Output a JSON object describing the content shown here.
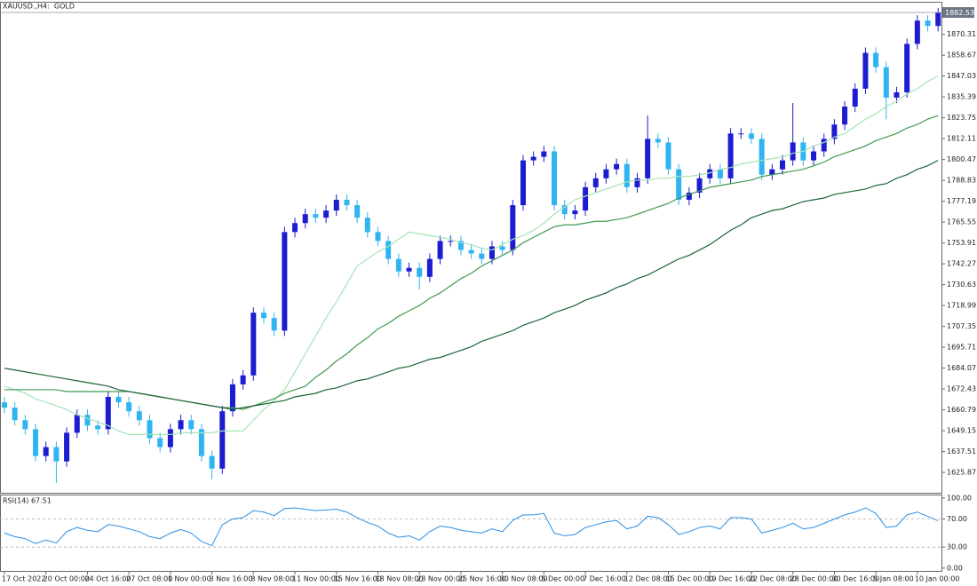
{
  "chart_data": [
    {
      "type": "candlestick",
      "title": "XAUUSD.,H4:  GOLD",
      "categories": [
        "17 Oct 2022",
        null,
        null,
        null,
        "20 Oct 00:00",
        null,
        null,
        null,
        "24 Oct 16:00",
        null,
        null,
        null,
        "27 Oct 08:00",
        null,
        null,
        null,
        "1 Nov 00:00",
        null,
        null,
        null,
        "3 Nov 16:00",
        null,
        null,
        null,
        "8 Nov 08:00",
        null,
        null,
        null,
        "11 Nov 00:00",
        null,
        null,
        null,
        "15 Nov 16:00",
        null,
        null,
        null,
        "18 Nov 08:00",
        null,
        null,
        null,
        "23 Nov 00:00",
        null,
        null,
        null,
        "25 Nov 16:00",
        null,
        null,
        null,
        "30 Nov 08:00",
        null,
        null,
        null,
        "5 Dec 00:00",
        null,
        null,
        null,
        "7 Dec 16:00",
        null,
        null,
        null,
        "12 Dec 08:00",
        null,
        null,
        null,
        "15 Dec 00:00",
        null,
        null,
        null,
        "19 Dec 16:00",
        null,
        null,
        null,
        "22 Dec 08:00",
        null,
        null,
        null,
        "28 Dec 00:00",
        null,
        null,
        null,
        "30 Dec 16:00",
        null,
        null,
        null,
        "5 Jan 08:00",
        null,
        null,
        null,
        "10 Jan 00:00",
        null,
        null
      ],
      "open": [
        1665,
        1662,
        1655,
        1650,
        1635,
        1640,
        1632,
        1648,
        1658,
        1652,
        1650,
        1668,
        1665,
        1660,
        1655,
        1645,
        1640,
        1650,
        1655,
        1650,
        1635,
        1628,
        1660,
        1675,
        1680,
        1715,
        1712,
        1705,
        1760,
        1765,
        1770,
        1768,
        1772,
        1778,
        1775,
        1768,
        1760,
        1755,
        1745,
        1738,
        1740,
        1735,
        1745,
        1755,
        1755,
        1750,
        1748,
        1745,
        1752,
        1750,
        1775,
        1800,
        1802,
        1805,
        1775,
        1770,
        1772,
        1785,
        1790,
        1795,
        1798,
        1785,
        1790,
        1812,
        1810,
        1795,
        1778,
        1782,
        1790,
        1795,
        1790,
        1815,
        1815,
        1812,
        1792,
        1795,
        1800,
        1810,
        1800,
        1805,
        1812,
        1820,
        1830,
        1840,
        1860,
        1852,
        1835,
        1838,
        1865,
        1878,
        1875
      ],
      "high": [
        1668,
        1665,
        1658,
        1653,
        1643,
        1643,
        1651,
        1661,
        1661,
        1655,
        1671,
        1671,
        1668,
        1663,
        1658,
        1648,
        1653,
        1658,
        1658,
        1653,
        1638,
        1663,
        1678,
        1683,
        1718,
        1718,
        1715,
        1763,
        1768,
        1773,
        1773,
        1775,
        1781,
        1781,
        1778,
        1771,
        1763,
        1758,
        1748,
        1743,
        1743,
        1748,
        1758,
        1758,
        1758,
        1753,
        1751,
        1755,
        1755,
        1778,
        1803,
        1805,
        1808,
        1808,
        1778,
        1775,
        1788,
        1793,
        1798,
        1801,
        1801,
        1793,
        1825,
        1815,
        1813,
        1798,
        1785,
        1793,
        1798,
        1798,
        1818,
        1818,
        1818,
        1815,
        1798,
        1803,
        1832,
        1813,
        1808,
        1815,
        1823,
        1833,
        1843,
        1863,
        1863,
        1855,
        1841,
        1868,
        1881,
        1881,
        1885
      ],
      "low": [
        1659,
        1652,
        1647,
        1632,
        1632,
        1620,
        1629,
        1645,
        1649,
        1647,
        1647,
        1662,
        1657,
        1652,
        1642,
        1637,
        1637,
        1647,
        1647,
        1632,
        1622,
        1625,
        1657,
        1672,
        1677,
        1709,
        1702,
        1702,
        1757,
        1762,
        1765,
        1765,
        1769,
        1772,
        1765,
        1757,
        1752,
        1742,
        1735,
        1735,
        1728,
        1732,
        1742,
        1752,
        1747,
        1745,
        1742,
        1742,
        1747,
        1747,
        1772,
        1797,
        1799,
        1772,
        1767,
        1767,
        1769,
        1782,
        1787,
        1792,
        1782,
        1782,
        1787,
        1807,
        1792,
        1775,
        1775,
        1779,
        1787,
        1787,
        1787,
        1812,
        1809,
        1789,
        1789,
        1792,
        1797,
        1797,
        1797,
        1802,
        1809,
        1817,
        1827,
        1837,
        1849,
        1823,
        1832,
        1835,
        1862,
        1872,
        1872
      ],
      "close": [
        1662,
        1655,
        1650,
        1635,
        1640,
        1632,
        1648,
        1658,
        1652,
        1650,
        1668,
        1665,
        1660,
        1655,
        1645,
        1640,
        1650,
        1655,
        1650,
        1635,
        1628,
        1660,
        1675,
        1680,
        1715,
        1712,
        1705,
        1760,
        1765,
        1770,
        1768,
        1772,
        1778,
        1775,
        1768,
        1760,
        1755,
        1745,
        1738,
        1740,
        1735,
        1745,
        1755,
        1755,
        1750,
        1748,
        1745,
        1752,
        1750,
        1775,
        1800,
        1802,
        1805,
        1775,
        1770,
        1772,
        1785,
        1790,
        1795,
        1798,
        1785,
        1790,
        1812,
        1810,
        1795,
        1778,
        1782,
        1790,
        1795,
        1790,
        1815,
        1815,
        1812,
        1792,
        1795,
        1800,
        1810,
        1800,
        1805,
        1812,
        1820,
        1830,
        1840,
        1860,
        1852,
        1835,
        1838,
        1865,
        1878,
        1875,
        1882.53
      ],
      "up_color": "#1c1cd0",
      "down_color": "#2fb4f2",
      "lines": [
        {
          "color": "#a6e3b4",
          "values": [
            1674,
            1672,
            1670,
            1667,
            1665,
            1663,
            1661,
            1658,
            1656,
            1654,
            1652,
            1649,
            1647,
            1647,
            1647,
            1647,
            1647,
            1648,
            1648,
            1648,
            1648,
            1649,
            1649,
            1649,
            1655,
            1661,
            1666,
            1672,
            1682,
            1692,
            1702,
            1712,
            1721,
            1731,
            1741,
            1745,
            1749,
            1752,
            1756,
            1760,
            1759,
            1758,
            1757,
            1756,
            1754,
            1753,
            1751,
            1750,
            1753,
            1756,
            1758,
            1761,
            1765,
            1770,
            1774,
            1778,
            1780,
            1782,
            1784,
            1786,
            1788,
            1789,
            1789,
            1790,
            1790,
            1791,
            1791,
            1792,
            1793,
            1795,
            1796,
            1798,
            1799,
            1800,
            1801,
            1802,
            1804,
            1805,
            1808,
            1810,
            1813,
            1815,
            1819,
            1823,
            1826,
            1830,
            1833,
            1837,
            1840,
            1844,
            1847
          ]
        },
        {
          "color": "#3f9a50",
          "values": [
            1672,
            1672,
            1672,
            1672,
            1672,
            1672,
            1671,
            1671,
            1671,
            1671,
            1671,
            1671,
            1671,
            1670,
            1669,
            1668,
            1667,
            1666,
            1665,
            1664,
            1663,
            1662,
            1662,
            1661,
            1663,
            1665,
            1667,
            1670,
            1672,
            1674,
            1679,
            1683,
            1688,
            1692,
            1697,
            1701,
            1706,
            1709,
            1713,
            1716,
            1719,
            1723,
            1726,
            1730,
            1734,
            1737,
            1741,
            1744,
            1747,
            1750,
            1754,
            1757,
            1760,
            1763,
            1764,
            1764,
            1765,
            1766,
            1766,
            1767,
            1768,
            1770,
            1772,
            1774,
            1776,
            1779,
            1781,
            1783,
            1785,
            1786,
            1787,
            1788,
            1789,
            1791,
            1792,
            1793,
            1794,
            1795,
            1797,
            1799,
            1802,
            1804,
            1806,
            1808,
            1811,
            1813,
            1815,
            1818,
            1820,
            1823,
            1825
          ]
        },
        {
          "color": "#1f6438",
          "values": [
            1684,
            1683,
            1682,
            1681,
            1680,
            1679,
            1678,
            1677,
            1676,
            1675,
            1674,
            1672,
            1671,
            1670,
            1669,
            1668,
            1667,
            1666,
            1665,
            1664,
            1663,
            1662,
            1661,
            1662,
            1663,
            1664,
            1665,
            1666,
            1668,
            1669,
            1670,
            1672,
            1673,
            1675,
            1677,
            1678,
            1680,
            1682,
            1684,
            1685,
            1687,
            1689,
            1690,
            1692,
            1694,
            1696,
            1699,
            1701,
            1703,
            1705,
            1708,
            1710,
            1712,
            1715,
            1717,
            1719,
            1722,
            1724,
            1726,
            1729,
            1731,
            1734,
            1736,
            1739,
            1742,
            1745,
            1747,
            1750,
            1753,
            1757,
            1761,
            1764,
            1768,
            1770,
            1772,
            1773,
            1775,
            1777,
            1778,
            1779,
            1781,
            1782,
            1783,
            1784,
            1786,
            1787,
            1790,
            1792,
            1795,
            1797,
            1800
          ]
        }
      ],
      "ylim": [
        1614.5,
        1888.5
      ],
      "yticks": [
        1870.31,
        1858.67,
        1847.03,
        1835.39,
        1823.75,
        1812.11,
        1800.47,
        1788.83,
        1777.19,
        1765.55,
        1753.91,
        1742.27,
        1730.63,
        1718.99,
        1707.35,
        1695.71,
        1684.07,
        1672.43,
        1660.79,
        1649.15,
        1637.51,
        1625.87
      ],
      "grid": false
    },
    {
      "type": "line",
      "title": "RSI(14) 67.51",
      "color": "#2a8fe6",
      "values": [
        50,
        45,
        42,
        35,
        40,
        36,
        52,
        58,
        54,
        52,
        62,
        60,
        56,
        52,
        45,
        42,
        50,
        55,
        50,
        38,
        32,
        62,
        70,
        72,
        82,
        80,
        75,
        85,
        86,
        84,
        82,
        83,
        84,
        80,
        72,
        65,
        60,
        50,
        44,
        46,
        40,
        52,
        60,
        58,
        54,
        52,
        50,
        56,
        52,
        68,
        76,
        76,
        78,
        50,
        46,
        48,
        58,
        62,
        66,
        68,
        56,
        60,
        74,
        72,
        62,
        48,
        52,
        58,
        60,
        56,
        72,
        72,
        70,
        50,
        54,
        58,
        64,
        56,
        58,
        64,
        70,
        76,
        80,
        86,
        78,
        58,
        60,
        76,
        80,
        74,
        67.51
      ],
      "ylim": [
        -4,
        105
      ],
      "yticks": [
        {
          "value": 100,
          "label": "100.00"
        },
        {
          "value": 70,
          "label": "70.00"
        },
        {
          "value": 30,
          "label": "30.00"
        },
        {
          "value": 0,
          "label": "0.00"
        }
      ],
      "levels": [
        70,
        30
      ],
      "grid": false
    }
  ]
}
